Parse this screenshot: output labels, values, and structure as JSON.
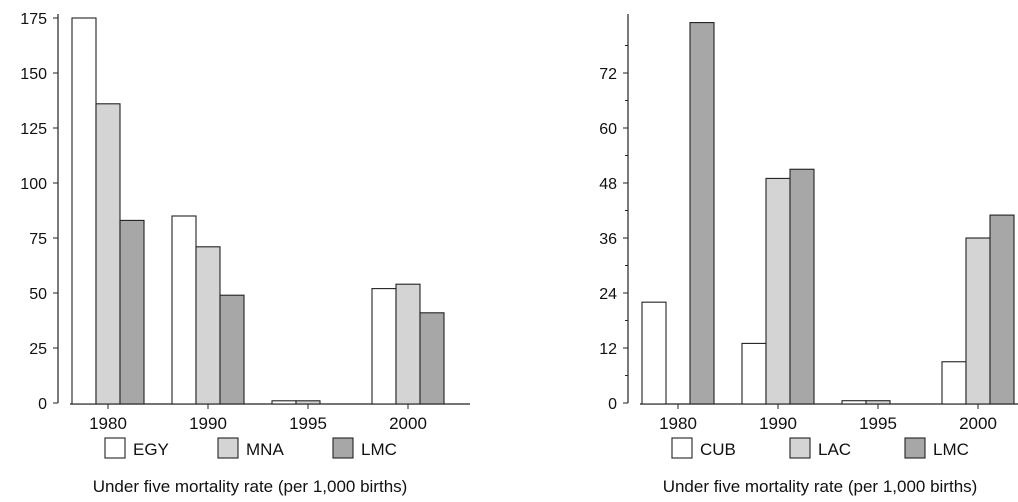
{
  "chart_data": [
    {
      "type": "bar",
      "categories": [
        "1980",
        "1990",
        "1995",
        "2000"
      ],
      "series": [
        {
          "name": "EGY",
          "values": [
            175,
            85,
            1,
            52
          ],
          "color": "#ffffff"
        },
        {
          "name": "MNA",
          "values": [
            136,
            71,
            1,
            54
          ],
          "color": "#d4d4d4"
        },
        {
          "name": "LMC",
          "values": [
            83,
            49,
            0,
            41
          ],
          "color": "#a7a7a7"
        }
      ],
      "yticks": [
        0,
        25,
        50,
        75,
        100,
        125,
        150,
        175
      ],
      "ylim": [
        0,
        175
      ],
      "xlabel": "Under five mortality rate (per 1,000 births)",
      "legend_position": "bottom",
      "grid": false
    },
    {
      "type": "bar",
      "categories": [
        "1980",
        "1990",
        "1995",
        "2000"
      ],
      "series": [
        {
          "name": "CUB",
          "values": [
            22,
            13,
            0.5,
            9
          ],
          "color": "#ffffff"
        },
        {
          "name": "LAC",
          "values": [
            0,
            49,
            0.5,
            36
          ],
          "color": "#d4d4d4"
        },
        {
          "name": "LMC",
          "values": [
            83,
            51,
            0,
            41
          ],
          "color": "#a7a7a7"
        }
      ],
      "yticks": [
        0,
        12,
        24,
        36,
        48,
        60,
        72
      ],
      "ylim": [
        0,
        84
      ],
      "xlabel": "Under five mortality rate (per 1,000 births)",
      "legend_position": "bottom",
      "grid": false
    }
  ]
}
